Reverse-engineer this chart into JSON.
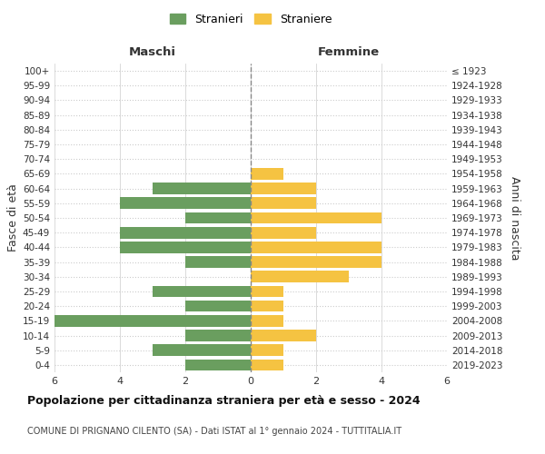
{
  "age_groups": [
    "0-4",
    "5-9",
    "10-14",
    "15-19",
    "20-24",
    "25-29",
    "30-34",
    "35-39",
    "40-44",
    "45-49",
    "50-54",
    "55-59",
    "60-64",
    "65-69",
    "70-74",
    "75-79",
    "80-84",
    "85-89",
    "90-94",
    "95-99",
    "100+"
  ],
  "birth_years": [
    "2019-2023",
    "2014-2018",
    "2009-2013",
    "2004-2008",
    "1999-2003",
    "1994-1998",
    "1989-1993",
    "1984-1988",
    "1979-1983",
    "1974-1978",
    "1969-1973",
    "1964-1968",
    "1959-1963",
    "1954-1958",
    "1949-1953",
    "1944-1948",
    "1939-1943",
    "1934-1938",
    "1929-1933",
    "1924-1928",
    "≤ 1923"
  ],
  "males": [
    2,
    3,
    2,
    6,
    2,
    3,
    0,
    2,
    4,
    4,
    2,
    4,
    3,
    0,
    0,
    0,
    0,
    0,
    0,
    0,
    0
  ],
  "females": [
    1,
    1,
    2,
    1,
    1,
    1,
    3,
    4,
    4,
    2,
    4,
    2,
    2,
    1,
    0,
    0,
    0,
    0,
    0,
    0,
    0
  ],
  "male_color": "#6a9e5f",
  "female_color": "#f5c342",
  "male_label": "Stranieri",
  "female_label": "Straniere",
  "title": "Popolazione per cittadinanza straniera per età e sesso - 2024",
  "subtitle": "COMUNE DI PRIGNANO CILENTO (SA) - Dati ISTAT al 1° gennaio 2024 - TUTTITALIA.IT",
  "left_header": "Maschi",
  "right_header": "Femmine",
  "left_ylabel": "Fasce di età",
  "right_ylabel": "Anni di nascita",
  "xlim": 6,
  "background_color": "#ffffff",
  "grid_color": "#cccccc"
}
